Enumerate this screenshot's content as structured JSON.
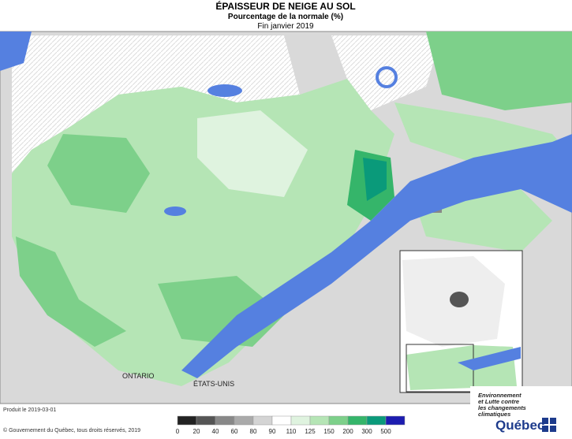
{
  "header": {
    "title": "ÉPAISSEUR DE NEIGE AU SOL",
    "subtitle": "Pourcentage de la normale (%)",
    "period": "Fin janvier 2019"
  },
  "map": {
    "labels": [
      "ONTARIO",
      "ÉTATS-UNIS"
    ]
  },
  "legend": {
    "entries": [
      {
        "label": "0",
        "color": "#222222"
      },
      {
        "label": "20",
        "color": "#555555"
      },
      {
        "label": "40",
        "color": "#888888"
      },
      {
        "label": "60",
        "color": "#aaaaaa"
      },
      {
        "label": "80",
        "color": "#d4d4d4"
      },
      {
        "label": "90",
        "color": "#ffffff"
      },
      {
        "label": "110",
        "color": "#dff3df"
      },
      {
        "label": "125",
        "color": "#b5e5b5"
      },
      {
        "label": "150",
        "color": "#7dd08a"
      },
      {
        "label": "200",
        "color": "#35b56a"
      },
      {
        "label": "300",
        "color": "#0a9a7a"
      },
      {
        "label": "500",
        "color": "#1c1cb0"
      }
    ]
  },
  "footer": {
    "produced": "Produit le 2019-03-01",
    "copyright": "© Gouvernement du Québec, tous droits réservés, 2019",
    "ministry": [
      "Environnement",
      "et Lutte contre",
      "les changements",
      "climatiques"
    ],
    "brand": "Québec"
  }
}
